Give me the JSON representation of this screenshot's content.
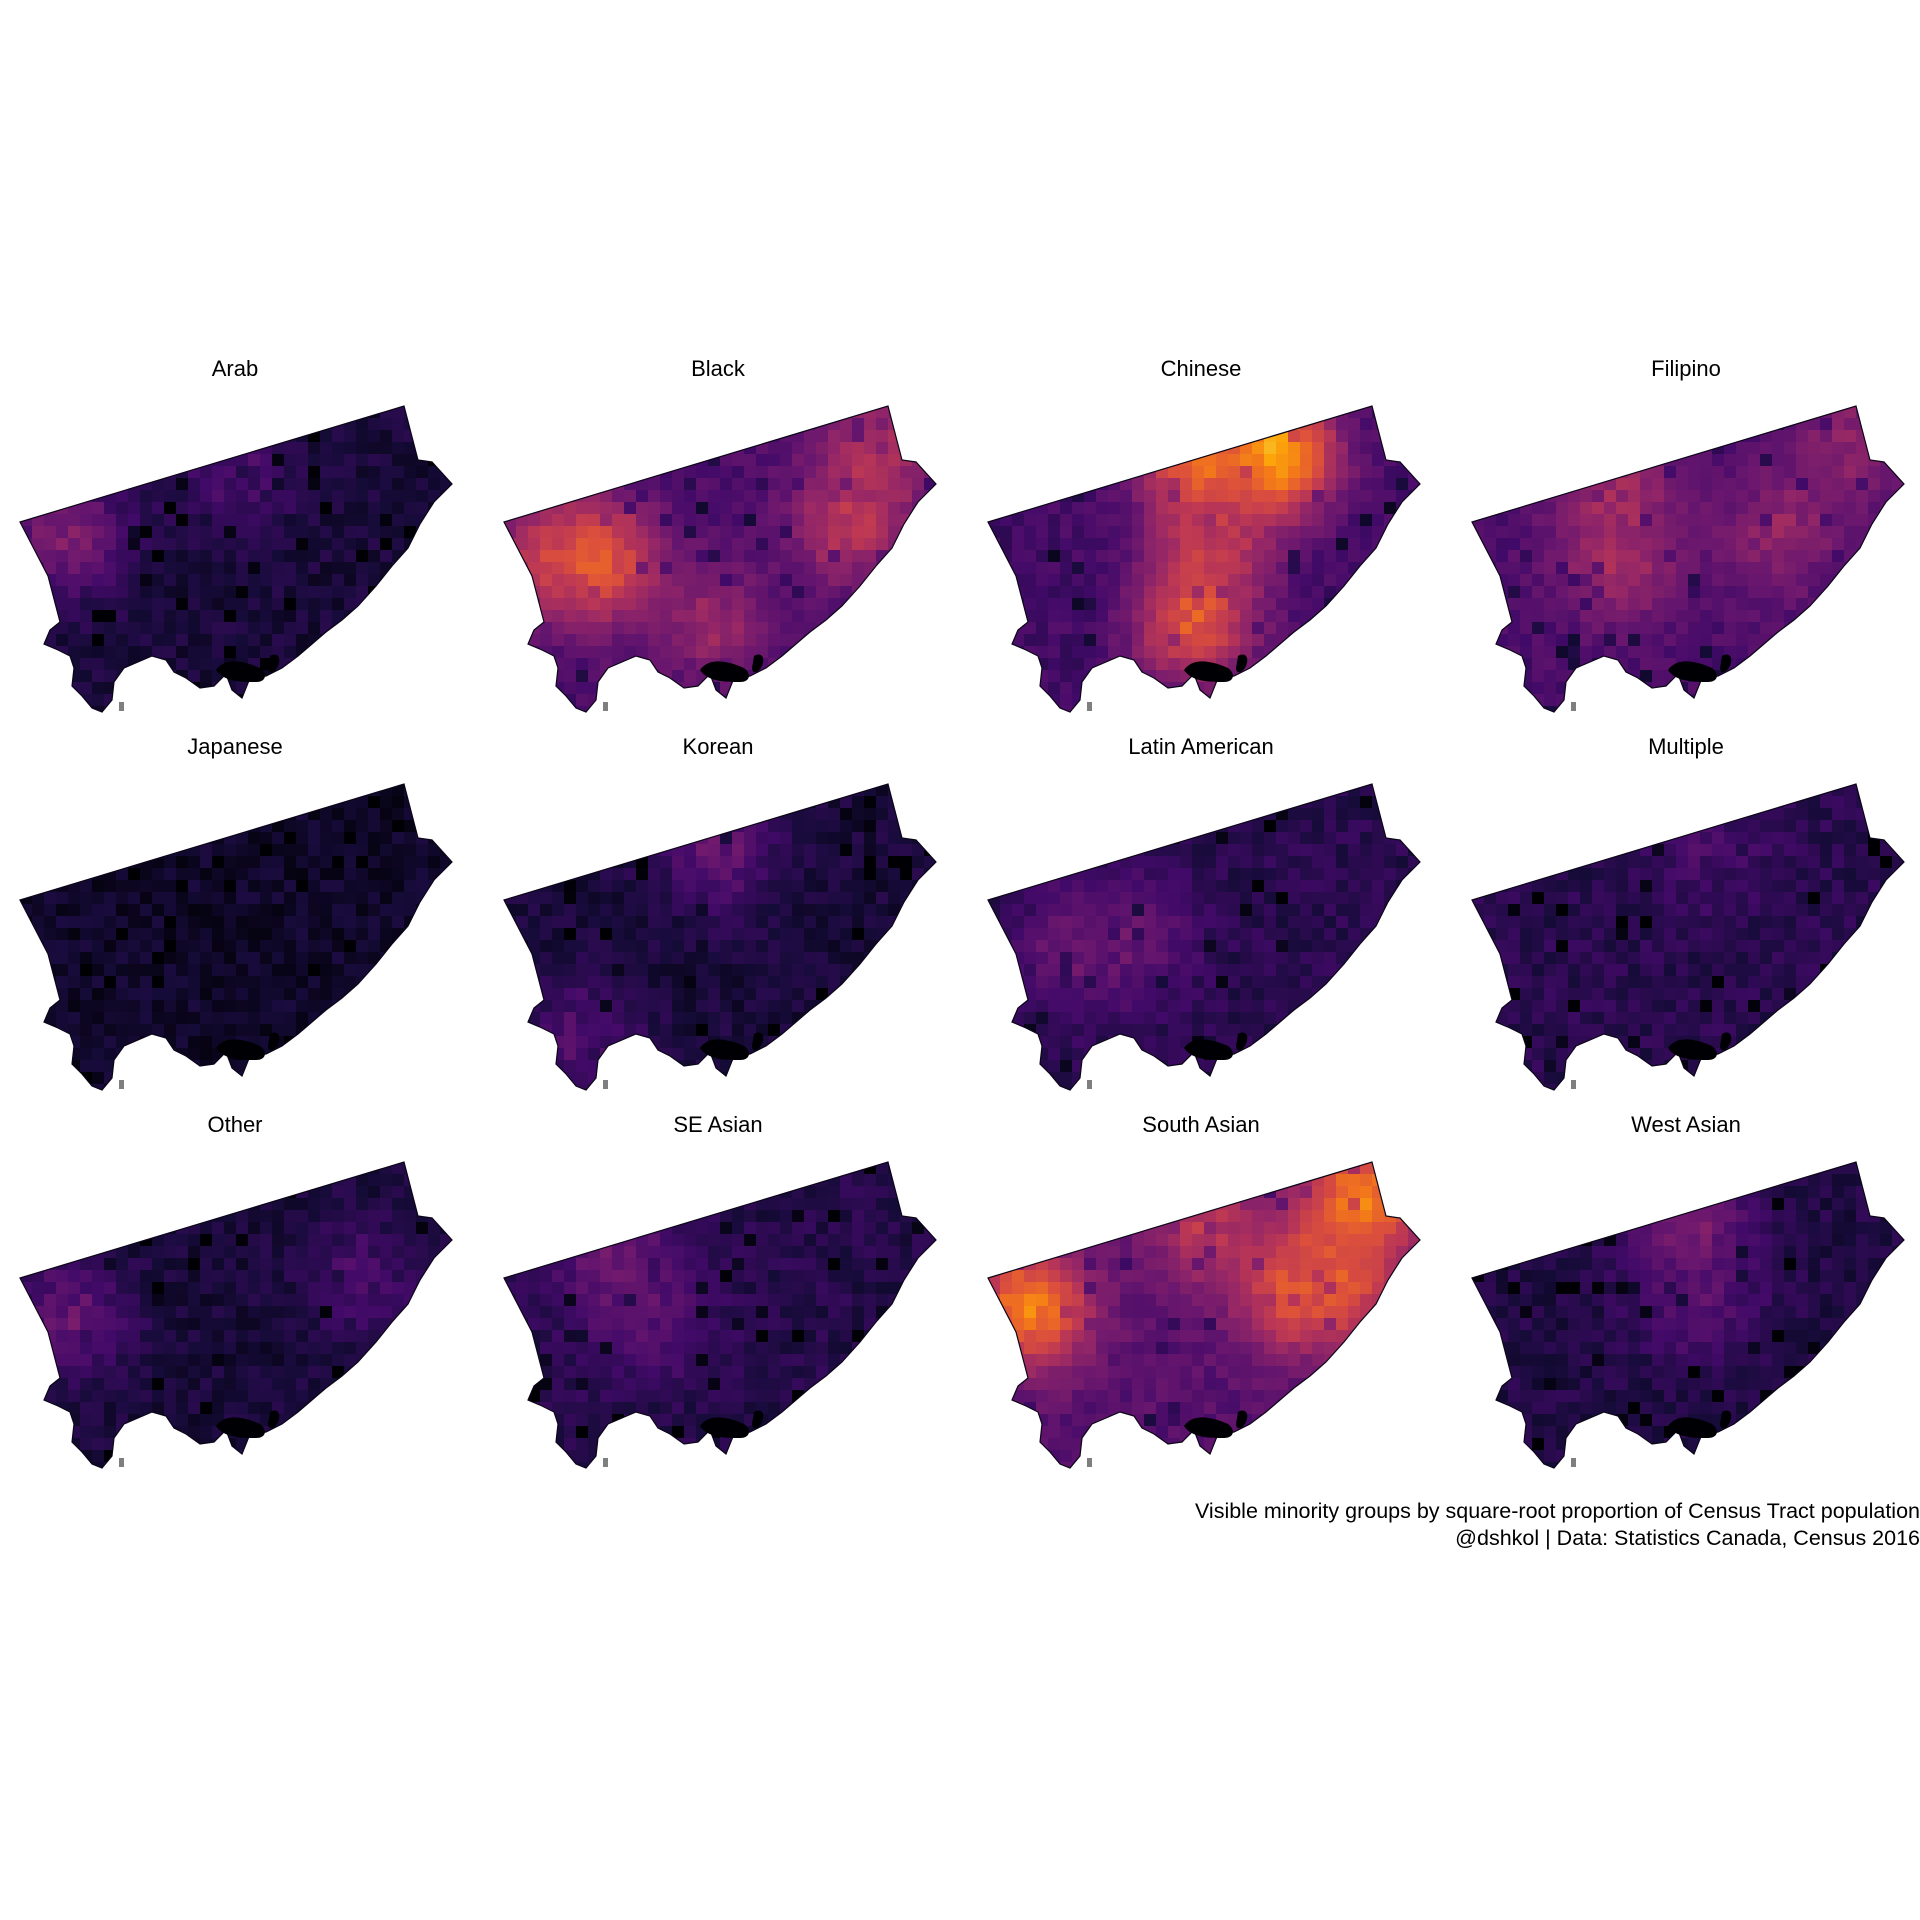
{
  "figure": {
    "type": "small-multiple choropleth maps",
    "colormap": "inferno",
    "background": "#ffffff",
    "layout": {
      "columns": 4,
      "rows": 3
    }
  },
  "panels": [
    {
      "title": "Arab",
      "base_level": 0.1,
      "hotspots": [
        {
          "region": "far west edge",
          "level": 0.35
        },
        {
          "region": "north centre",
          "level": 0.22
        }
      ]
    },
    {
      "title": "Black",
      "base_level": 0.22,
      "hotspots": [
        {
          "region": "northwest corner",
          "level": 0.48
        },
        {
          "region": "northwest",
          "level": 0.62
        },
        {
          "region": "northeast corner",
          "level": 0.45
        },
        {
          "region": "east",
          "level": 0.5
        },
        {
          "region": "south centre",
          "level": 0.4
        }
      ]
    },
    {
      "title": "Chinese",
      "base_level": 0.2,
      "hotspots": [
        {
          "region": "north centre-east",
          "level": 0.85
        },
        {
          "region": "north centre",
          "level": 0.7
        },
        {
          "region": "centre",
          "level": 0.5
        },
        {
          "region": "south centre",
          "level": 0.62
        }
      ]
    },
    {
      "title": "Filipino",
      "base_level": 0.22,
      "hotspots": [
        {
          "region": "northeast corner",
          "level": 0.38
        },
        {
          "region": "centre-west",
          "level": 0.45
        },
        {
          "region": "centre-east",
          "level": 0.4
        },
        {
          "region": "north centre-west",
          "level": 0.42
        }
      ]
    },
    {
      "title": "Japanese",
      "base_level": 0.07,
      "hotspots": []
    },
    {
      "title": "Korean",
      "base_level": 0.1,
      "hotspots": [
        {
          "region": "north centre",
          "level": 0.28
        },
        {
          "region": "southwest",
          "level": 0.24
        }
      ]
    },
    {
      "title": "Latin American",
      "base_level": 0.14,
      "hotspots": [
        {
          "region": "west",
          "level": 0.3
        },
        {
          "region": "centre-west",
          "level": 0.28
        }
      ]
    },
    {
      "title": "Multiple",
      "base_level": 0.14,
      "hotspots": [
        {
          "region": "north",
          "level": 0.2
        }
      ]
    },
    {
      "title": "Other",
      "base_level": 0.1,
      "hotspots": [
        {
          "region": "far west",
          "level": 0.28
        },
        {
          "region": "east",
          "level": 0.22
        }
      ]
    },
    {
      "title": "SE Asian",
      "base_level": 0.13,
      "hotspots": [
        {
          "region": "northwest centre",
          "level": 0.32
        },
        {
          "region": "centre-west",
          "level": 0.26
        }
      ]
    },
    {
      "title": "South Asian",
      "base_level": 0.25,
      "hotspots": [
        {
          "region": "northwest corner",
          "level": 0.72
        },
        {
          "region": "northeast corner",
          "level": 0.74
        },
        {
          "region": "east",
          "level": 0.62
        },
        {
          "region": "centre-east",
          "level": 0.6
        },
        {
          "region": "north centre",
          "level": 0.5
        }
      ]
    },
    {
      "title": "West Asian",
      "base_level": 0.12,
      "hotspots": [
        {
          "region": "north centre",
          "level": 0.36
        },
        {
          "region": "centre",
          "level": 0.26
        }
      ]
    }
  ],
  "caption": {
    "line1": "Visible minority groups by square-root proportion of Census Tract population",
    "line2": "@dshkol | Data: Statistics Canada, Census 2016"
  }
}
